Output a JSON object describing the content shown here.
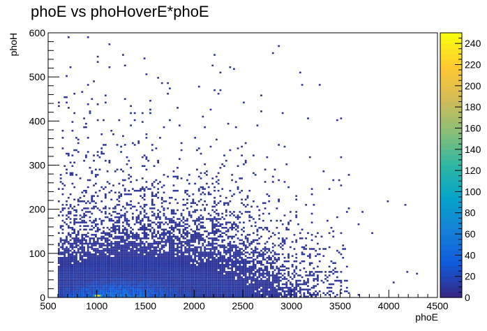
{
  "chart_data": {
    "type": "heatmap",
    "title": "phoE vs phoHoverE*phoE",
    "xlabel": "phoE",
    "ylabel": "phoH",
    "xlim": [
      500,
      4500
    ],
    "ylim": [
      0,
      600
    ],
    "x_ticks": [
      500,
      1000,
      1500,
      2000,
      2500,
      3000,
      3500,
      4000,
      4500
    ],
    "y_ticks": [
      0,
      100,
      200,
      300,
      400,
      500,
      600
    ],
    "bin_width_x": 20,
    "bin_width_y": 4,
    "colorbar": {
      "min": 0,
      "max": 250,
      "ticks": [
        0,
        20,
        40,
        60,
        80,
        100,
        120,
        140,
        160,
        180,
        200,
        220,
        240
      ],
      "palette": [
        "#352a87",
        "#0f5cdd",
        "#1481d6",
        "#06a4ca",
        "#2eb7a4",
        "#87bf77",
        "#d1bb59",
        "#fec832",
        "#f9fb0e"
      ]
    },
    "description_regions": [
      {
        "x_range": [
          600,
          1800
        ],
        "y_range": [
          0,
          60
        ],
        "density": "high"
      },
      {
        "x_range": [
          1000,
          2900
        ],
        "y_range": [
          0,
          160
        ],
        "density": "medium"
      },
      {
        "x_range": [
          600,
          3600
        ],
        "y_range": [
          0,
          300
        ],
        "density": "low"
      },
      {
        "x_range": [
          600,
          2700
        ],
        "y_range": [
          300,
          600
        ],
        "density": "sparse"
      }
    ],
    "peak": {
      "x": 1000,
      "y": 2,
      "value": 245
    }
  }
}
